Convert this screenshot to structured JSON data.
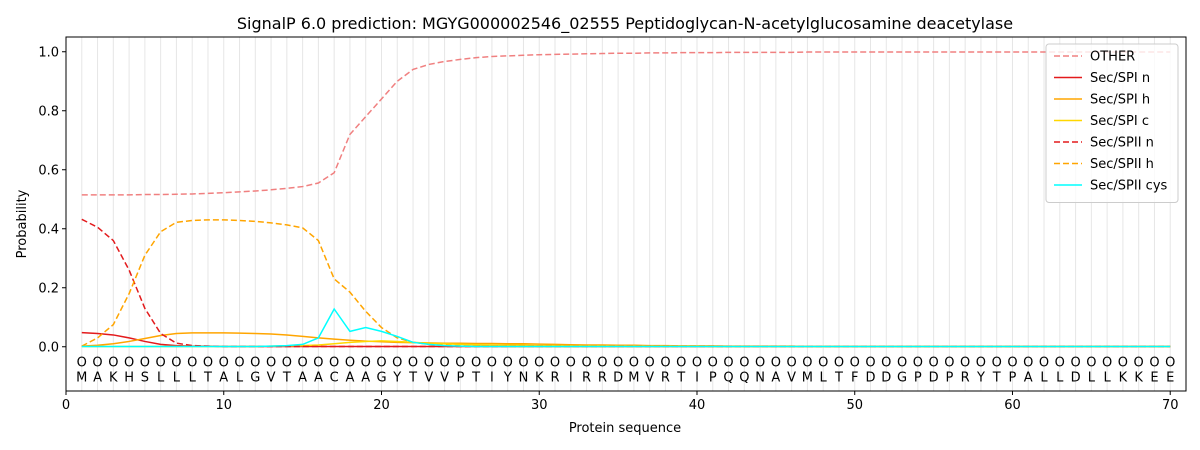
{
  "chart_data": {
    "type": "line",
    "title": "SignalP 6.0 prediction: MGYG000002546_02555 Peptidoglycan-N-acetylglucosamine deacetylase",
    "xlabel": "Protein sequence",
    "ylabel": "Probability",
    "xlim": [
      0,
      71
    ],
    "ylim": [
      -0.15,
      1.05
    ],
    "x_ticks": [
      0,
      10,
      20,
      30,
      40,
      50,
      60,
      70
    ],
    "y_ticks": [
      0.0,
      0.2,
      0.4,
      0.6,
      0.8,
      1.0
    ],
    "x_tick_labels": [
      "0",
      "10",
      "20",
      "30",
      "40",
      "50",
      "60",
      "70"
    ],
    "y_tick_labels": [
      "0.0",
      "0.2",
      "0.4",
      "0.6",
      "0.8",
      "1.0"
    ],
    "grid": "vertical lines at each residue",
    "legend_position": "top-right",
    "sequence": [
      "M",
      "A",
      "K",
      "H",
      "S",
      "L",
      "L",
      "L",
      "T",
      "A",
      "L",
      "G",
      "V",
      "T",
      "A",
      "A",
      "C",
      "A",
      "A",
      "G",
      "Y",
      "T",
      "V",
      "V",
      "P",
      "T",
      "I",
      "Y",
      "N",
      "K",
      "R",
      "I",
      "R",
      "R",
      "D",
      "M",
      "V",
      "R",
      "T",
      "I",
      "P",
      "Q",
      "Q",
      "N",
      "A",
      "V",
      "M",
      "L",
      "T",
      "F",
      "D",
      "D",
      "G",
      "P",
      "D",
      "P",
      "R",
      "Y",
      "T",
      "P",
      "A",
      "L",
      "L",
      "D",
      "L",
      "L",
      "K",
      "K",
      "E",
      "E"
    ],
    "region_marker": "O",
    "series": [
      {
        "name": "OTHER",
        "color": "#f08080",
        "dash": "dashed",
        "values": [
          0.515,
          0.515,
          0.515,
          0.515,
          0.516,
          0.516,
          0.517,
          0.518,
          0.52,
          0.522,
          0.525,
          0.528,
          0.532,
          0.537,
          0.543,
          0.555,
          0.59,
          0.72,
          0.78,
          0.84,
          0.9,
          0.94,
          0.957,
          0.967,
          0.974,
          0.98,
          0.984,
          0.986,
          0.988,
          0.99,
          0.991,
          0.992,
          0.993,
          0.994,
          0.995,
          0.995,
          0.996,
          0.996,
          0.997,
          0.997,
          0.997,
          0.998,
          0.998,
          0.998,
          0.998,
          0.998,
          0.999,
          0.999,
          0.999,
          0.999,
          0.999,
          0.999,
          0.999,
          0.999,
          0.999,
          0.999,
          0.999,
          0.999,
          0.999,
          0.999,
          0.999,
          0.999,
          0.999,
          0.999,
          0.999,
          0.999,
          0.999,
          0.999,
          0.999,
          0.999
        ]
      },
      {
        "name": "Sec/SPI n",
        "color": "#e31a1c",
        "dash": "solid",
        "values": [
          0.048,
          0.045,
          0.04,
          0.03,
          0.018,
          0.008,
          0.004,
          0.002,
          0.002,
          0.001,
          0.001,
          0.001,
          0.001,
          0.001,
          0.001,
          0.001,
          0.001,
          0.001,
          0.001,
          0.001,
          0.001,
          0.001,
          0.001,
          0.001,
          0.001,
          0.001,
          0.001,
          0.001,
          0.001,
          0.001,
          0.001,
          0.001,
          0.001,
          0.001,
          0.001,
          0.001,
          0.001,
          0.001,
          0.001,
          0.001,
          0.001,
          0.001,
          0.001,
          0.001,
          0.001,
          0.001,
          0.001,
          0.001,
          0.001,
          0.001,
          0.001,
          0.001,
          0.001,
          0.001,
          0.001,
          0.001,
          0.001,
          0.001,
          0.001,
          0.001,
          0.001,
          0.001,
          0.001,
          0.001,
          0.001,
          0.001,
          0.001,
          0.001,
          0.001,
          0.001
        ]
      },
      {
        "name": "Sec/SPI h",
        "color": "#ffa500",
        "dash": "solid",
        "values": [
          0.002,
          0.005,
          0.01,
          0.018,
          0.028,
          0.038,
          0.045,
          0.047,
          0.047,
          0.047,
          0.046,
          0.045,
          0.043,
          0.04,
          0.035,
          0.03,
          0.026,
          0.022,
          0.019,
          0.017,
          0.015,
          0.014,
          0.013,
          0.012,
          0.012,
          0.011,
          0.011,
          0.01,
          0.01,
          0.009,
          0.008,
          0.007,
          0.006,
          0.006,
          0.005,
          0.005,
          0.004,
          0.004,
          0.003,
          0.003,
          0.003,
          0.002,
          0.002,
          0.002,
          0.002,
          0.002,
          0.001,
          0.001,
          0.001,
          0.001,
          0.001,
          0.001,
          0.001,
          0.001,
          0.001,
          0.001,
          0.001,
          0.001,
          0.001,
          0.001,
          0.001,
          0.001,
          0.001,
          0.001,
          0.001,
          0.001,
          0.001,
          0.001,
          0.001,
          0.001
        ]
      },
      {
        "name": "Sec/SPI c",
        "color": "#ffd700",
        "dash": "solid",
        "values": [
          0.001,
          0.001,
          0.001,
          0.001,
          0.001,
          0.001,
          0.001,
          0.001,
          0.001,
          0.001,
          0.001,
          0.001,
          0.002,
          0.003,
          0.004,
          0.006,
          0.01,
          0.015,
          0.018,
          0.02,
          0.018,
          0.015,
          0.012,
          0.01,
          0.008,
          0.007,
          0.006,
          0.005,
          0.005,
          0.004,
          0.004,
          0.003,
          0.003,
          0.003,
          0.002,
          0.002,
          0.002,
          0.002,
          0.002,
          0.002,
          0.001,
          0.001,
          0.001,
          0.001,
          0.001,
          0.001,
          0.001,
          0.001,
          0.001,
          0.001,
          0.001,
          0.001,
          0.001,
          0.001,
          0.001,
          0.001,
          0.001,
          0.001,
          0.001,
          0.001,
          0.001,
          0.001,
          0.001,
          0.001,
          0.001,
          0.001,
          0.001,
          0.001,
          0.001,
          0.001
        ]
      },
      {
        "name": "Sec/SPII n",
        "color": "#e31a1c",
        "dash": "dashed",
        "values": [
          0.432,
          0.405,
          0.36,
          0.26,
          0.13,
          0.045,
          0.012,
          0.004,
          0.002,
          0.001,
          0.001,
          0.001,
          0.001,
          0.001,
          0.001,
          0.001,
          0.001,
          0.001,
          0.001,
          0.001,
          0.001,
          0.001,
          0.001,
          0.001,
          0.001,
          0.001,
          0.001,
          0.001,
          0.001,
          0.001,
          0.001,
          0.001,
          0.001,
          0.001,
          0.001,
          0.001,
          0.001,
          0.001,
          0.001,
          0.001,
          0.001,
          0.001,
          0.001,
          0.001,
          0.001,
          0.001,
          0.001,
          0.001,
          0.001,
          0.001,
          0.001,
          0.001,
          0.001,
          0.001,
          0.001,
          0.001,
          0.001,
          0.001,
          0.001,
          0.001,
          0.001,
          0.001,
          0.001,
          0.001,
          0.001,
          0.001,
          0.001,
          0.001,
          0.001,
          0.001
        ]
      },
      {
        "name": "Sec/SPII h",
        "color": "#ffa500",
        "dash": "dashed",
        "values": [
          0.002,
          0.03,
          0.075,
          0.18,
          0.31,
          0.39,
          0.422,
          0.428,
          0.43,
          0.43,
          0.428,
          0.425,
          0.42,
          0.413,
          0.403,
          0.36,
          0.23,
          0.185,
          0.12,
          0.065,
          0.03,
          0.015,
          0.008,
          0.005,
          0.003,
          0.002,
          0.002,
          0.001,
          0.001,
          0.001,
          0.001,
          0.001,
          0.001,
          0.001,
          0.001,
          0.001,
          0.001,
          0.001,
          0.001,
          0.001,
          0.001,
          0.001,
          0.001,
          0.001,
          0.001,
          0.001,
          0.001,
          0.001,
          0.001,
          0.001,
          0.001,
          0.001,
          0.001,
          0.001,
          0.001,
          0.001,
          0.001,
          0.001,
          0.001,
          0.001,
          0.001,
          0.001,
          0.001,
          0.001,
          0.001,
          0.001,
          0.001,
          0.001,
          0.001,
          0.001
        ]
      },
      {
        "name": "Sec/SPII cys",
        "color": "#00ffff",
        "dash": "solid",
        "values": [
          0.001,
          0.001,
          0.001,
          0.001,
          0.001,
          0.001,
          0.001,
          0.001,
          0.001,
          0.001,
          0.001,
          0.001,
          0.002,
          0.004,
          0.008,
          0.03,
          0.128,
          0.052,
          0.065,
          0.052,
          0.035,
          0.015,
          0.008,
          0.004,
          0.002,
          0.001,
          0.001,
          0.001,
          0.001,
          0.001,
          0.001,
          0.001,
          0.001,
          0.001,
          0.001,
          0.001,
          0.001,
          0.001,
          0.001,
          0.001,
          0.001,
          0.001,
          0.001,
          0.001,
          0.001,
          0.001,
          0.001,
          0.001,
          0.001,
          0.001,
          0.001,
          0.001,
          0.001,
          0.001,
          0.001,
          0.001,
          0.001,
          0.001,
          0.001,
          0.001,
          0.001,
          0.001,
          0.001,
          0.001,
          0.001,
          0.001,
          0.001,
          0.001,
          0.001,
          0.001
        ]
      }
    ]
  }
}
